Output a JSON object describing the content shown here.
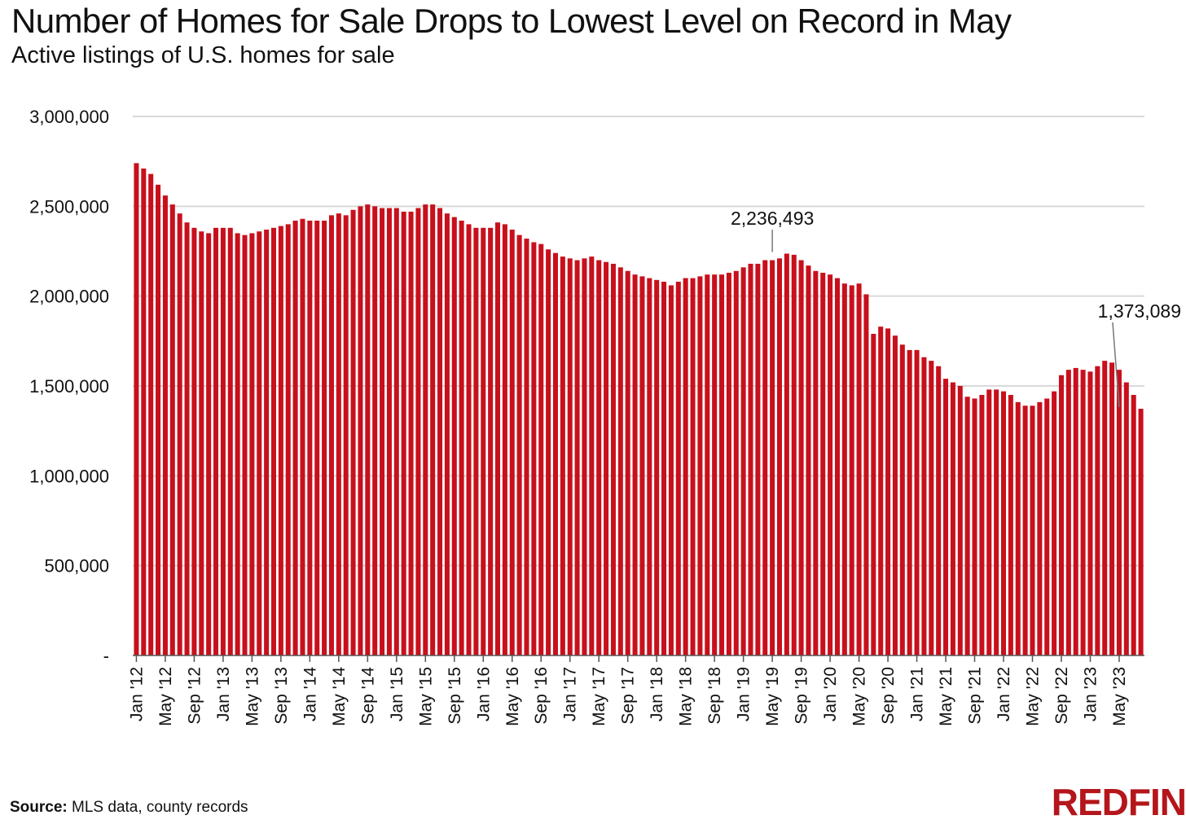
{
  "header": {
    "title": "Number of Homes for Sale Drops to Lowest Level on Record in May",
    "subtitle": "Active listings of U.S. homes for sale"
  },
  "footer": {
    "source_label": "Source:",
    "source_text": " MLS data, county records",
    "logo_text": "REDFIN"
  },
  "colors": {
    "bar": "#c8101c",
    "grid": "#d9d9d9",
    "axis": "#555555",
    "brand": "#b4161b"
  },
  "chart_data": {
    "type": "bar",
    "title": "Number of Homes for Sale Drops to Lowest Level on Record in May",
    "subtitle": "Active listings of U.S. homes for sale",
    "xlabel": "",
    "ylabel": "",
    "ylim": [
      0,
      3000000
    ],
    "grid": true,
    "y_ticks": [
      {
        "value": 0,
        "label": "-"
      },
      {
        "value": 500000,
        "label": "500,000"
      },
      {
        "value": 1000000,
        "label": "1,000,000"
      },
      {
        "value": 1500000,
        "label": "1,500,000"
      },
      {
        "value": 2000000,
        "label": "2,000,000"
      },
      {
        "value": 2500000,
        "label": "2,500,000"
      },
      {
        "value": 3000000,
        "label": "3,000,000"
      }
    ],
    "x_tick_labels": [
      "Jan '12",
      "May '12",
      "Sep '12",
      "Jan '13",
      "May '13",
      "Sep '13",
      "Jan '14",
      "May '14",
      "Sep '14",
      "Jan '15",
      "May '15",
      "Sep '15",
      "Jan '16",
      "May '16",
      "Sep '16",
      "Jan '17",
      "May '17",
      "Sep '17",
      "Jan '18",
      "May '18",
      "Sep '18",
      "Jan '19",
      "May '19",
      "Sep '19",
      "Jan '20",
      "May '20",
      "Sep '20",
      "Jan '21",
      "May '21",
      "Sep '21",
      "Jan '22",
      "May '22",
      "Sep '22",
      "Jan '23",
      "May '23"
    ],
    "x_tick_every": 4,
    "start": "Jan 2012",
    "values": [
      2740000,
      2710000,
      2680000,
      2620000,
      2560000,
      2510000,
      2460000,
      2410000,
      2380000,
      2360000,
      2350000,
      2380000,
      2380000,
      2380000,
      2350000,
      2340000,
      2350000,
      2360000,
      2370000,
      2380000,
      2390000,
      2400000,
      2420000,
      2430000,
      2420000,
      2420000,
      2420000,
      2450000,
      2460000,
      2450000,
      2480000,
      2500000,
      2510000,
      2500000,
      2490000,
      2490000,
      2490000,
      2470000,
      2470000,
      2490000,
      2510000,
      2510000,
      2490000,
      2460000,
      2440000,
      2420000,
      2400000,
      2380000,
      2380000,
      2380000,
      2410000,
      2400000,
      2370000,
      2340000,
      2320000,
      2300000,
      2290000,
      2260000,
      2240000,
      2220000,
      2210000,
      2200000,
      2210000,
      2220000,
      2200000,
      2190000,
      2180000,
      2160000,
      2140000,
      2120000,
      2110000,
      2100000,
      2090000,
      2080000,
      2060000,
      2080000,
      2100000,
      2100000,
      2110000,
      2120000,
      2120000,
      2120000,
      2130000,
      2140000,
      2160000,
      2180000,
      2180000,
      2200000,
      2200000,
      2210000,
      2236493,
      2230000,
      2200000,
      2170000,
      2140000,
      2130000,
      2120000,
      2100000,
      2070000,
      2060000,
      2070000,
      2010000,
      1790000,
      1830000,
      1820000,
      1780000,
      1730000,
      1700000,
      1700000,
      1660000,
      1640000,
      1610000,
      1540000,
      1520000,
      1500000,
      1440000,
      1430000,
      1450000,
      1480000,
      1480000,
      1470000,
      1450000,
      1410000,
      1390000,
      1390000,
      1410000,
      1430000,
      1470000,
      1560000,
      1590000,
      1600000,
      1590000,
      1580000,
      1610000,
      1640000,
      1630000,
      1590000,
      1520000,
      1450000,
      1373089
    ],
    "annotations": [
      {
        "label": "2,236,493",
        "index": 88,
        "value": 2236493
      },
      {
        "label": "1,373,089",
        "index": 136,
        "value": 1373089
      }
    ]
  }
}
